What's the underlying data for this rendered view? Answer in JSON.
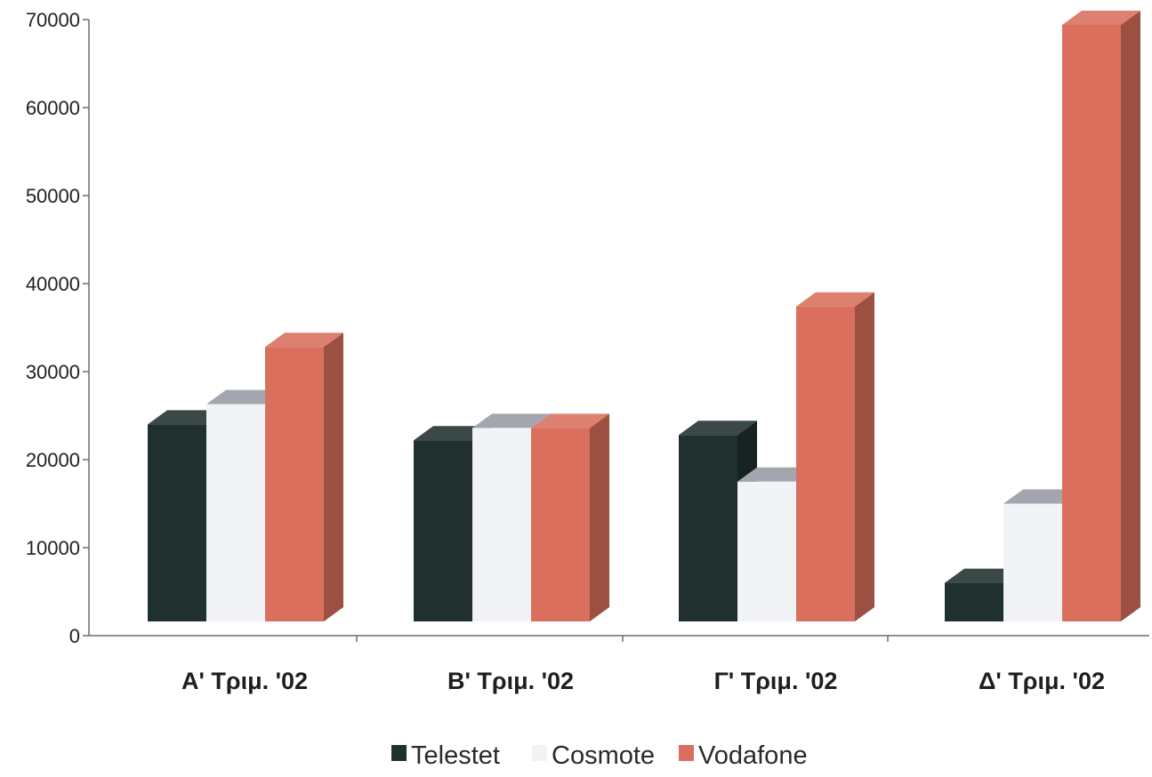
{
  "chart_data": {
    "type": "bar",
    "variant": "3d-clustered",
    "title": "",
    "xlabel": "",
    "ylabel": "",
    "categories": [
      "Α' Τριμ. '02",
      "Β' Τριμ. '02",
      "Γ' Τριμ. '02",
      "Δ' Τριμ. '02"
    ],
    "series": [
      {
        "name": "Telestet",
        "color": "#1f302e",
        "values": [
          24000,
          22200,
          22800,
          6000
        ]
      },
      {
        "name": "Cosmote",
        "color": "#f2f3f7",
        "values": [
          26300,
          23600,
          17500,
          15000
        ]
      },
      {
        "name": "Vodafone",
        "color": "#d96f5c",
        "values": [
          32800,
          23600,
          37400,
          69400
        ]
      }
    ],
    "ylim": [
      0,
      70000
    ],
    "yticks": [
      "0",
      "10000",
      "20000",
      "30000",
      "40000",
      "50000",
      "60000",
      "70000"
    ],
    "grid": false,
    "legend": {
      "position": "bottom",
      "entries": [
        "Telestet",
        "Cosmote",
        "Vodafone"
      ]
    }
  }
}
